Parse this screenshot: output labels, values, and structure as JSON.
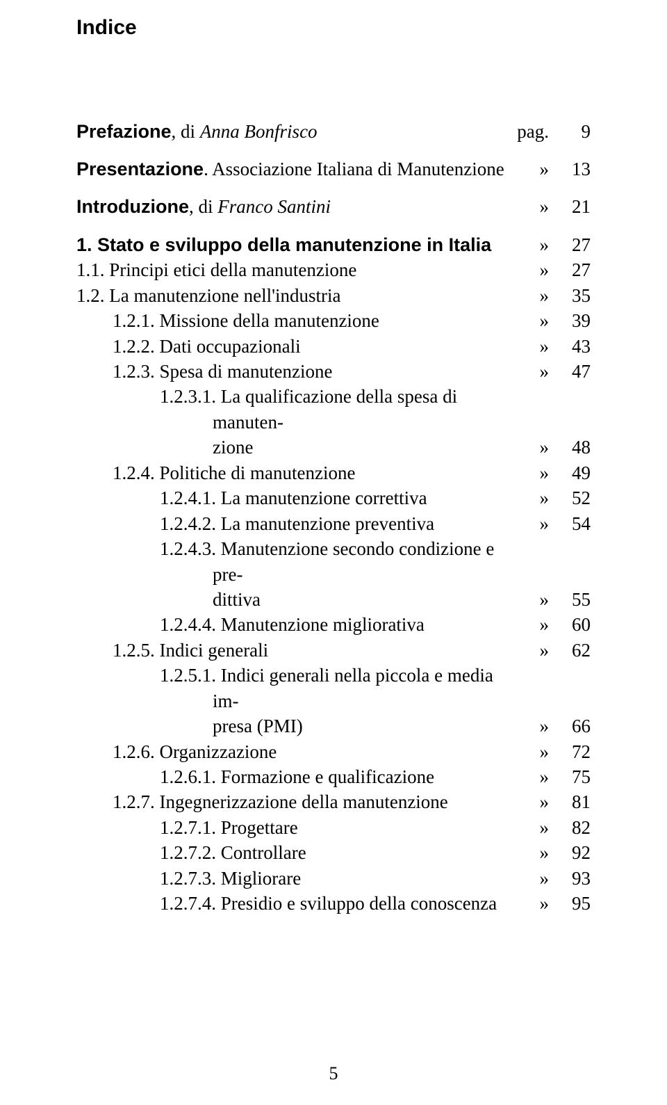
{
  "title": "Indice",
  "page_mark": "pag.",
  "cont_mark": "»",
  "page_number": "5",
  "entries": [
    {
      "level": 1,
      "label_html": "<span class='bold-sans'>Prefazione</span>, di <span class='italic'>Anna Bonfrisco</span>",
      "mark": "pag.",
      "page": "9",
      "gap_after": true
    },
    {
      "level": 1,
      "label_html": "<span class='bold-sans'>Presentazione</span>. Associazione Italiana di Manutenzione",
      "mark": "»",
      "page": "13",
      "gap_after": true
    },
    {
      "level": 1,
      "label_html": "<span class='bold-sans'>Introduzione</span>, di <span class='italic'>Franco Santini</span>",
      "mark": "»",
      "page": "21",
      "gap_after": true
    },
    {
      "level": 1,
      "label_html": "<span class='bold-sans'>1. Stato e sviluppo della manutenzione in Italia</span>",
      "mark": "»",
      "page": "27"
    },
    {
      "level": 2,
      "label_html": "1.1. Principi etici della manutenzione",
      "mark": "»",
      "page": "27"
    },
    {
      "level": 2,
      "label_html": "1.2. La manutenzione nell'industria",
      "mark": "»",
      "page": "35"
    },
    {
      "level": 3,
      "label_html": "1.2.1. Missione della manutenzione",
      "mark": "»",
      "page": "39"
    },
    {
      "level": 3,
      "label_html": "1.2.2. Dati occupazionali",
      "mark": "»",
      "page": "43"
    },
    {
      "level": 3,
      "label_html": "1.2.3. Spesa di manutenzione",
      "mark": "»",
      "page": "47"
    },
    {
      "level": 4,
      "first": "1.2.3.1. La qualificazione della spesa di manuten-",
      "cont": "zione",
      "mark": "»",
      "page": "48"
    },
    {
      "level": 3,
      "label_html": "1.2.4. Politiche di manutenzione",
      "mark": "»",
      "page": "49"
    },
    {
      "level": 4,
      "label_html": "1.2.4.1. La manutenzione correttiva",
      "mark": "»",
      "page": "52"
    },
    {
      "level": 4,
      "label_html": "1.2.4.2. La manutenzione preventiva",
      "mark": "»",
      "page": "54"
    },
    {
      "level": 4,
      "first": "1.2.4.3. Manutenzione secondo condizione e pre-",
      "cont": "dittiva",
      "mark": "»",
      "page": "55"
    },
    {
      "level": 4,
      "label_html": "1.2.4.4. Manutenzione migliorativa",
      "mark": "»",
      "page": "60"
    },
    {
      "level": 3,
      "label_html": "1.2.5. Indici generali",
      "mark": "»",
      "page": "62"
    },
    {
      "level": 4,
      "first": "1.2.5.1. Indici generali nella piccola e media im-",
      "cont": "presa (PMI)",
      "mark": "»",
      "page": "66"
    },
    {
      "level": 3,
      "label_html": "1.2.6. Organizzazione",
      "mark": "»",
      "page": "72"
    },
    {
      "level": 4,
      "label_html": "1.2.6.1. Formazione e qualificazione",
      "mark": "»",
      "page": "75"
    },
    {
      "level": 3,
      "label_html": "1.2.7. Ingegnerizzazione della manutenzione",
      "mark": "»",
      "page": "81"
    },
    {
      "level": 4,
      "label_html": "1.2.7.1. Progettare",
      "mark": "»",
      "page": "82"
    },
    {
      "level": 4,
      "label_html": "1.2.7.2. Controllare",
      "mark": "»",
      "page": "92"
    },
    {
      "level": 4,
      "label_html": "1.2.7.3. Migliorare",
      "mark": "»",
      "page": "93"
    },
    {
      "level": 4,
      "label_html": "1.2.7.4. Presidio e sviluppo della conoscenza",
      "mark": "»",
      "page": "95"
    }
  ]
}
